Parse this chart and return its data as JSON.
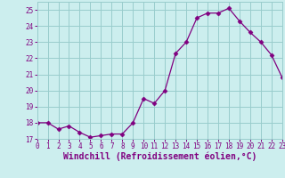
{
  "x": [
    0,
    1,
    2,
    3,
    4,
    5,
    6,
    7,
    8,
    9,
    10,
    11,
    12,
    13,
    14,
    15,
    16,
    17,
    18,
    19,
    20,
    21,
    22,
    23
  ],
  "y": [
    18.0,
    18.0,
    17.6,
    17.8,
    17.4,
    17.1,
    17.2,
    17.3,
    17.3,
    18.0,
    19.5,
    19.2,
    20.0,
    22.3,
    23.0,
    24.5,
    24.8,
    24.8,
    25.1,
    24.3,
    23.6,
    23.0,
    22.2,
    20.8
  ],
  "line_color": "#800080",
  "marker": "D",
  "marker_size": 2.5,
  "bg_color": "#cceeee",
  "grid_color": "#99cccc",
  "xlabel": "Windchill (Refroidissement éolien,°C)",
  "ylabel": "",
  "xlim": [
    0,
    23
  ],
  "ylim": [
    17.0,
    25.5
  ],
  "yticks": [
    17,
    18,
    19,
    20,
    21,
    22,
    23,
    24,
    25
  ],
  "xticks": [
    0,
    1,
    2,
    3,
    4,
    5,
    6,
    7,
    8,
    9,
    10,
    11,
    12,
    13,
    14,
    15,
    16,
    17,
    18,
    19,
    20,
    21,
    22,
    23
  ],
  "tick_fontsize": 5.5,
  "xlabel_fontsize": 7.0
}
